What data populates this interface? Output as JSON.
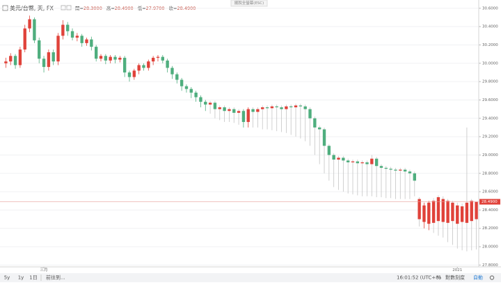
{
  "header": {
    "symbol": "美元/台幣, 天, FX",
    "ohlc": [
      {
        "label": "開=",
        "value": "28.3000"
      },
      {
        "label": "高=",
        "value": "28.4900"
      },
      {
        "label": "低=",
        "value": "27.9700"
      },
      {
        "label": "收=",
        "value": "28.4900"
      }
    ],
    "exit_fullscreen": "擺脫全螢幕(ESC)"
  },
  "toolbar": {
    "ranges": [
      "5y",
      "1y",
      "1日"
    ],
    "goto": "前往到...",
    "time": "16:01:52 (UTC+8)",
    "percent": "%",
    "log": "對數刻度",
    "auto": "自動"
  },
  "chart_data": {
    "type": "candlestick",
    "up_color": "#e0423a",
    "down_color": "#4fae7e",
    "grid": true,
    "ylim": [
      27.78,
      30.69
    ],
    "yticks": [
      {
        "value": 27.8,
        "label": "27.8000"
      },
      {
        "value": 28.0,
        "label": "28.0000"
      },
      {
        "value": 28.2,
        "label": "28.2000"
      },
      {
        "value": 28.4,
        "label": "28.4000"
      },
      {
        "value": 28.6,
        "label": "28.6000"
      },
      {
        "value": 28.8,
        "label": "28.8000"
      },
      {
        "value": 29.0,
        "label": "29.0000"
      },
      {
        "value": 29.2,
        "label": "29.2000"
      },
      {
        "value": 29.4,
        "label": "29.4000"
      },
      {
        "value": 29.6,
        "label": "29.6000"
      },
      {
        "value": 29.8,
        "label": "29.8000"
      },
      {
        "value": 30.0,
        "label": "30.0000"
      },
      {
        "value": 30.2,
        "label": "30.2000"
      },
      {
        "value": 30.4,
        "label": "30.4000"
      },
      {
        "value": 30.6,
        "label": "30.6000"
      }
    ],
    "categories": [
      null,
      null,
      null,
      null,
      null,
      null,
      null,
      null,
      "三月",
      null,
      null,
      null,
      null,
      null,
      null,
      null,
      null,
      null,
      null,
      null,
      null,
      null,
      null,
      null,
      null,
      null,
      null,
      null,
      null,
      null,
      null,
      null,
      null,
      null,
      null,
      null,
      null,
      null,
      null,
      null,
      null,
      null,
      null,
      null,
      null,
      null,
      null,
      null,
      null,
      null,
      null,
      null,
      null,
      null,
      null,
      null,
      null,
      null,
      null,
      null,
      null,
      null,
      null,
      null,
      null,
      null,
      null,
      null,
      null,
      null,
      null,
      null,
      null,
      null,
      null,
      null,
      null,
      null,
      null,
      null,
      null,
      null,
      null,
      null,
      null,
      null,
      null,
      null,
      null,
      null,
      null,
      null,
      null,
      null,
      null,
      "2021",
      null,
      null,
      null,
      null
    ],
    "open": [
      30.0,
      30.02,
      30.08,
      29.98,
      30.15,
      30.38,
      30.48,
      30.25,
      30.05,
      29.96,
      30.12,
      30.02,
      30.3,
      30.42,
      30.35,
      30.28,
      30.3,
      30.22,
      30.26,
      30.18,
      30.05,
      30.08,
      30.03,
      30.07,
      30.04,
      30.06,
      29.9,
      29.85,
      29.92,
      29.98,
      29.95,
      30.02,
      30.06,
      30.07,
      30.03,
      29.95,
      29.88,
      29.82,
      29.75,
      29.72,
      29.68,
      29.63,
      29.58,
      29.55,
      29.57,
      29.5,
      29.52,
      29.48,
      29.5,
      29.46,
      29.48,
      29.36,
      29.5,
      29.47,
      29.5,
      29.52,
      29.51,
      29.53,
      29.52,
      29.5,
      29.53,
      29.52,
      29.54,
      29.53,
      29.5,
      29.4,
      29.3,
      29.28,
      29.1,
      29.0,
      28.95,
      28.97,
      28.94,
      28.92,
      28.93,
      28.91,
      28.92,
      28.9,
      28.96,
      28.88,
      28.86,
      28.85,
      28.84,
      28.83,
      28.84,
      28.82,
      28.8,
      28.3,
      28.27,
      28.25,
      28.26,
      28.28,
      28.27,
      28.26,
      28.28,
      28.25,
      28.27,
      28.26,
      28.28,
      28.3
    ],
    "high": [
      30.06,
      30.11,
      30.1,
      30.18,
      30.42,
      30.52,
      30.5,
      30.28,
      30.08,
      30.15,
      30.15,
      30.33,
      30.47,
      30.45,
      30.38,
      30.33,
      30.32,
      30.28,
      30.29,
      30.2,
      30.1,
      30.1,
      30.09,
      30.09,
      30.08,
      30.08,
      29.92,
      29.94,
      30.0,
      30.0,
      30.04,
      30.08,
      30.09,
      30.09,
      30.05,
      29.97,
      29.9,
      29.84,
      29.77,
      29.74,
      29.7,
      29.65,
      29.6,
      29.59,
      29.59,
      29.54,
      29.54,
      29.52,
      29.52,
      29.5,
      29.5,
      29.52,
      29.52,
      29.52,
      29.54,
      29.54,
      29.55,
      29.55,
      29.54,
      29.55,
      29.55,
      29.56,
      29.56,
      29.55,
      29.52,
      29.42,
      29.32,
      29.3,
      29.12,
      29.02,
      28.99,
      28.99,
      28.96,
      28.95,
      28.95,
      28.94,
      28.94,
      29.0,
      28.98,
      28.9,
      28.88,
      28.87,
      28.86,
      28.86,
      28.86,
      28.84,
      28.82,
      28.54,
      28.48,
      28.5,
      28.53,
      28.56,
      28.55,
      28.52,
      28.5,
      28.48,
      28.47,
      29.3,
      28.52,
      28.49
    ],
    "low": [
      29.95,
      29.98,
      29.94,
      29.95,
      30.12,
      30.34,
      30.22,
      30.0,
      29.9,
      29.92,
      29.98,
      29.98,
      30.26,
      30.3,
      30.25,
      30.24,
      30.18,
      30.19,
      30.14,
      30.02,
      30.02,
      29.99,
      30.0,
      30.0,
      30.01,
      29.85,
      29.8,
      29.82,
      29.88,
      29.92,
      29.92,
      29.98,
      30.02,
      30.0,
      29.9,
      29.83,
      29.78,
      29.7,
      29.68,
      29.62,
      29.58,
      29.52,
      29.48,
      29.45,
      29.4,
      29.38,
      29.36,
      29.36,
      29.35,
      29.33,
      29.3,
      29.3,
      29.3,
      29.3,
      29.28,
      29.28,
      29.27,
      29.26,
      29.25,
      29.24,
      29.22,
      29.2,
      29.18,
      29.15,
      29.1,
      29.0,
      28.9,
      28.8,
      28.72,
      28.65,
      28.62,
      28.6,
      28.58,
      28.57,
      28.56,
      28.55,
      28.55,
      28.55,
      28.54,
      28.54,
      28.53,
      28.53,
      28.52,
      28.52,
      28.52,
      28.52,
      28.55,
      28.22,
      28.2,
      28.18,
      28.15,
      28.12,
      28.1,
      28.05,
      28.02,
      27.98,
      27.96,
      27.95,
      27.96,
      27.97
    ],
    "close": [
      30.02,
      30.08,
      29.98,
      30.15,
      30.38,
      30.48,
      30.25,
      30.05,
      29.96,
      30.12,
      30.02,
      30.3,
      30.42,
      30.35,
      30.28,
      30.3,
      30.22,
      30.26,
      30.18,
      30.05,
      30.08,
      30.03,
      30.07,
      30.04,
      30.06,
      29.9,
      29.85,
      29.92,
      29.98,
      29.95,
      30.02,
      30.06,
      30.07,
      30.03,
      29.95,
      29.88,
      29.82,
      29.75,
      29.72,
      29.68,
      29.63,
      29.58,
      29.55,
      29.57,
      29.5,
      29.52,
      29.48,
      29.5,
      29.46,
      29.48,
      29.36,
      29.5,
      29.47,
      29.5,
      29.52,
      29.51,
      29.53,
      29.52,
      29.5,
      29.53,
      29.52,
      29.54,
      29.53,
      29.5,
      29.4,
      29.3,
      29.28,
      29.1,
      29.0,
      28.95,
      28.97,
      28.94,
      28.92,
      28.93,
      28.91,
      28.92,
      28.9,
      28.96,
      28.88,
      28.86,
      28.85,
      28.84,
      28.83,
      28.84,
      28.82,
      28.8,
      28.72,
      28.52,
      28.45,
      28.48,
      28.5,
      28.54,
      28.52,
      28.5,
      28.48,
      28.45,
      28.44,
      28.48,
      28.5,
      28.49
    ]
  }
}
